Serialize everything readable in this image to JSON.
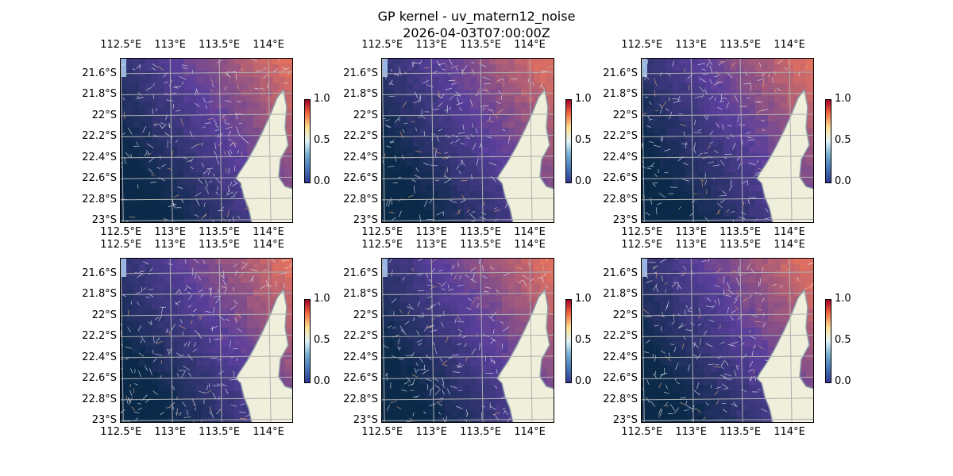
{
  "figure": {
    "title": "GP kernel - uv_matern12_noise",
    "subtitle": "2026-04-03T07:00:00Z"
  },
  "axes": {
    "lon_ticks": [
      "112.5°E",
      "113°E",
      "113.5°E",
      "114°E"
    ],
    "lat_ticks": [
      "21.6°S",
      "21.8°S",
      "22°S",
      "22.2°S",
      "22.4°S",
      "22.6°S",
      "22.8°S",
      "23°S"
    ],
    "lon_values": [
      112.5,
      113,
      113.5,
      114
    ],
    "lat_values": [
      -21.6,
      -21.8,
      -22.0,
      -22.2,
      -22.4,
      -22.6,
      -22.8,
      -23.0
    ],
    "extent": {
      "lon": [
        112.49,
        114.25
      ],
      "lat": [
        -23.02,
        -21.45
      ]
    }
  },
  "colorbar": {
    "ticks": [
      "1.0",
      "0.5",
      "0.0"
    ],
    "range": [
      0,
      1
    ],
    "colormap": "RdYlBu_r"
  },
  "colors": {
    "ocean": "#97b6e1",
    "land": "#efefdb",
    "coast": "#8a9aa8",
    "grid": "#b0b0b0",
    "field_low": "#0b2a4a",
    "field_mid": "#5a3f9c",
    "field_high": "#e07060"
  },
  "panels": [
    {
      "id": "panel-1",
      "seed": 1
    },
    {
      "id": "panel-2",
      "seed": 2
    },
    {
      "id": "panel-3",
      "seed": 3
    },
    {
      "id": "panel-4",
      "seed": 4
    },
    {
      "id": "panel-5",
      "seed": 5
    },
    {
      "id": "panel-6",
      "seed": 6
    }
  ]
}
